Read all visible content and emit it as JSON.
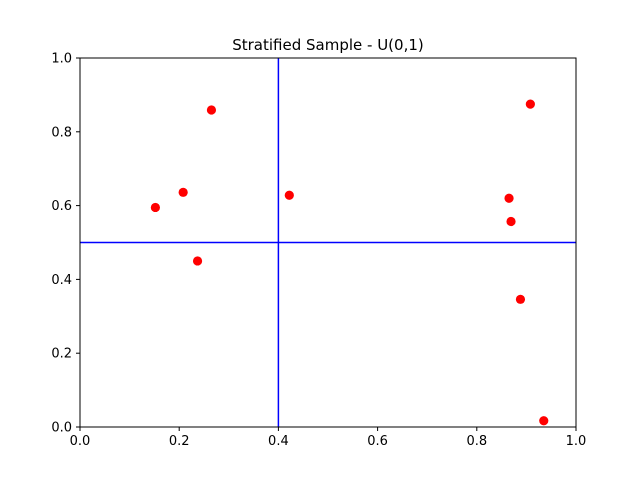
{
  "chart_data": {
    "type": "scatter",
    "title": "Stratified Sample - U(0,1)",
    "xlabel": "",
    "ylabel": "",
    "xlim": [
      0.0,
      1.0
    ],
    "ylim": [
      0.0,
      1.0
    ],
    "grid": false,
    "x_ticks": [
      0.0,
      0.2,
      0.4,
      0.6,
      0.8,
      1.0
    ],
    "y_ticks": [
      0.0,
      0.2,
      0.4,
      0.6,
      0.8,
      1.0
    ],
    "x_tick_labels": [
      "0.0",
      "0.2",
      "0.4",
      "0.6",
      "0.8",
      "1.0"
    ],
    "y_tick_labels": [
      "0.0",
      "0.2",
      "0.4",
      "0.6",
      "0.8",
      "1.0"
    ],
    "stratum_lines": {
      "vertical_x": 0.4,
      "horizontal_y": 0.5,
      "color": "#0000ff"
    },
    "points": {
      "color": "#ff0000",
      "x": [
        0.265,
        0.152,
        0.208,
        0.237,
        0.422,
        0.908,
        0.865,
        0.869,
        0.888,
        0.935
      ],
      "y": [
        0.859,
        0.595,
        0.636,
        0.45,
        0.628,
        0.875,
        0.62,
        0.557,
        0.346,
        0.017
      ]
    }
  }
}
